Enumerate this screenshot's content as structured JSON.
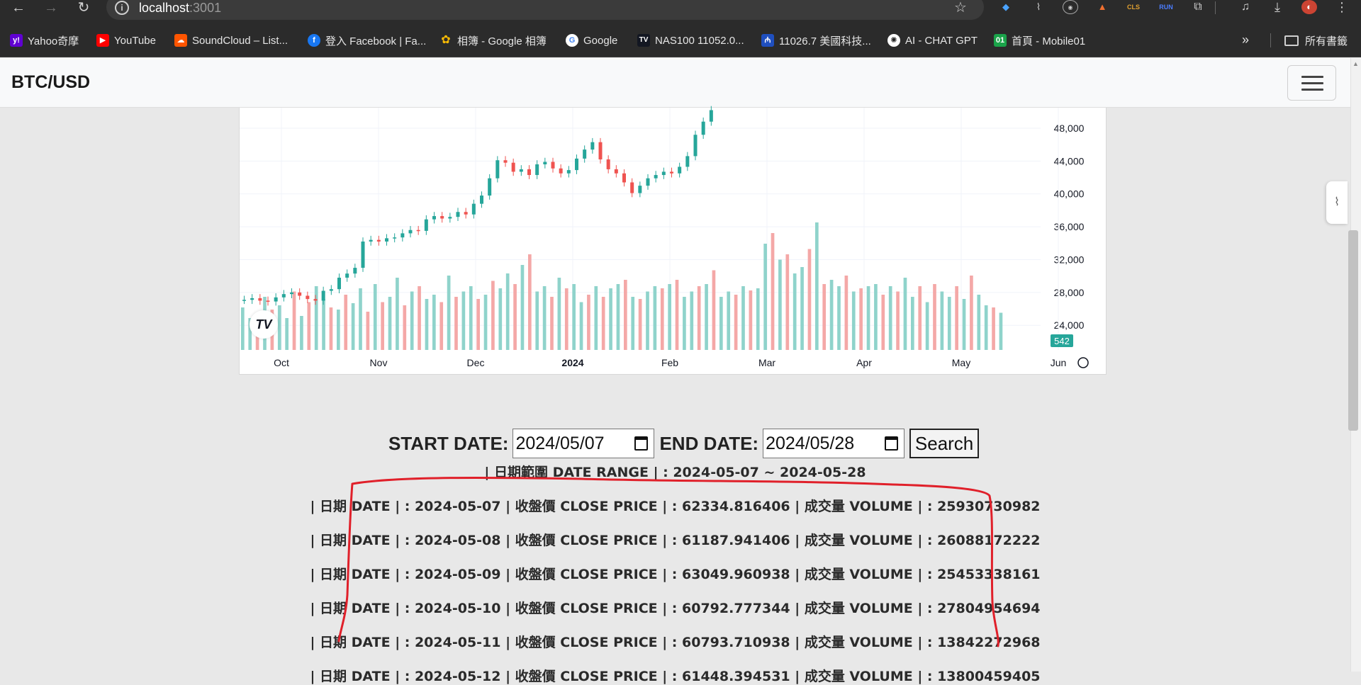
{
  "browser": {
    "url_host": "localhost",
    "url_port": ":3001",
    "bookmarks": [
      {
        "label": "Yahoo奇摩",
        "icon": "yahoo-icon",
        "color": "#6001d2"
      },
      {
        "label": "YouTube",
        "icon": "youtube-icon",
        "color": "#ff0000"
      },
      {
        "label": "SoundCloud – List...",
        "icon": "soundcloud-icon",
        "color": "#ff5500"
      },
      {
        "label": "登入 Facebook | Fa...",
        "icon": "facebook-icon",
        "color": "#1877f2"
      },
      {
        "label": "相簿 - Google 相簿",
        "icon": "google-photos-icon",
        "color": "#fbbc04"
      },
      {
        "label": "Google",
        "icon": "google-icon",
        "color": "#ffffff"
      },
      {
        "label": "NAS100 11052.0...",
        "icon": "tradingview-icon",
        "color": "#131722"
      },
      {
        "label": "11026.7 美國科技...",
        "icon": "market-icon",
        "color": "#1f4fbf"
      },
      {
        "label": "AI - CHAT GPT",
        "icon": "openai-icon",
        "color": "#ffffff"
      },
      {
        "label": "首頁 - Mobile01",
        "icon": "mobile01-icon",
        "color": "#1aa34a"
      }
    ],
    "all_bookmarks_label": "所有書籤"
  },
  "app": {
    "brand": "BTC/USD"
  },
  "chart_data": {
    "type": "candlestick",
    "title": "",
    "x_tick_labels": [
      "Oct",
      "Nov",
      "Dec",
      "2024",
      "Feb",
      "Mar",
      "Apr",
      "May",
      "Jun"
    ],
    "y_tick_labels": [
      "48,000",
      "44,000",
      "40,000",
      "36,000",
      "32,000",
      "28,000",
      "24,000"
    ],
    "ylim": [
      21000,
      50500
    ],
    "last_value_label": "542",
    "price_closes": [
      27100,
      27300,
      27000,
      26900,
      27400,
      27800,
      28000,
      27600,
      27200,
      27000,
      28200,
      28400,
      29800,
      30300,
      31000,
      34200,
      34400,
      34200,
      34600,
      34700,
      35200,
      35600,
      35500,
      36900,
      37300,
      37000,
      37200,
      37800,
      37500,
      38800,
      39800,
      41900,
      44100,
      43800,
      42700,
      43000,
      42300,
      43600,
      43900,
      43100,
      42500,
      42900,
      44300,
      45400,
      46300,
      44200,
      43000,
      42500,
      41400,
      40100,
      41000,
      41900,
      42300,
      42700,
      42500,
      43300,
      44600,
      47200,
      48800,
      50200
    ],
    "volume_heights": [
      0.4,
      0.3,
      0.35,
      0.5,
      0.38,
      0.42,
      0.3,
      0.55,
      0.32,
      0.45,
      0.6,
      0.48,
      0.4,
      0.38,
      0.52,
      0.44,
      0.58,
      0.36,
      0.62,
      0.45,
      0.5,
      0.68,
      0.42,
      0.55,
      0.6,
      0.48,
      0.52,
      0.45,
      0.7,
      0.5,
      0.55,
      0.6,
      0.48,
      0.52,
      0.65,
      0.58,
      0.72,
      0.62,
      0.8,
      0.9,
      0.55,
      0.6,
      0.5,
      0.68,
      0.58,
      0.62,
      0.45,
      0.52,
      0.6,
      0.5,
      0.58,
      0.62,
      0.66,
      0.5,
      0.48,
      0.55,
      0.6,
      0.58,
      0.62,
      0.66,
      0.5,
      0.55,
      0.6,
      0.62,
      0.75,
      0.5,
      0.55,
      0.52,
      0.6,
      0.56,
      0.58,
      1.0,
      1.1,
      0.85,
      0.9,
      0.72,
      0.78,
      0.95,
      1.2,
      0.62,
      0.66,
      0.6,
      0.7,
      0.55,
      0.58,
      0.6,
      0.62,
      0.52,
      0.6,
      0.55,
      0.68,
      0.5,
      0.6,
      0.45,
      0.62,
      0.55,
      0.5,
      0.6,
      0.48,
      0.7,
      0.52,
      0.42,
      0.4,
      0.35
    ],
    "colors": {
      "up": "#26a69a",
      "down": "#ef5350",
      "up_volume": "#8fd3cb",
      "down_volume": "#f4a8a7",
      "grid": "#f0f3fa",
      "axis_text": "#131722",
      "badge": "#26a69a"
    }
  },
  "form": {
    "start_label": "START DATE:",
    "start_value": "2024/05/07",
    "end_label": "END DATE:",
    "end_value": "2024/05/28",
    "search_label": "Search"
  },
  "results": {
    "range_text": "| 日期範圍 DATE RANGE | : 2024-05-07 ~ 2024-05-28",
    "rows": [
      "| 日期 DATE | : 2024-05-07 | 收盤價 CLOSE PRICE | : 62334.816406 | 成交量 VOLUME | : 25930730982",
      "| 日期 DATE | : 2024-05-08 | 收盤價 CLOSE PRICE | : 61187.941406 | 成交量 VOLUME | : 26088172222",
      "| 日期 DATE | : 2024-05-09 | 收盤價 CLOSE PRICE | : 63049.960938 | 成交量 VOLUME | : 25453338161",
      "| 日期 DATE | : 2024-05-10 | 收盤價 CLOSE PRICE | : 60792.777344 | 成交量 VOLUME | : 27804954694",
      "| 日期 DATE | : 2024-05-11 | 收盤價 CLOSE PRICE | : 60793.710938 | 成交量 VOLUME | : 13842272968",
      "| 日期 DATE | : 2024-05-12 | 收盤價 CLOSE PRICE | : 61448.394531 | 成交量 VOLUME | : 13800459405"
    ]
  },
  "annotation": {
    "color": "#e0202a"
  }
}
